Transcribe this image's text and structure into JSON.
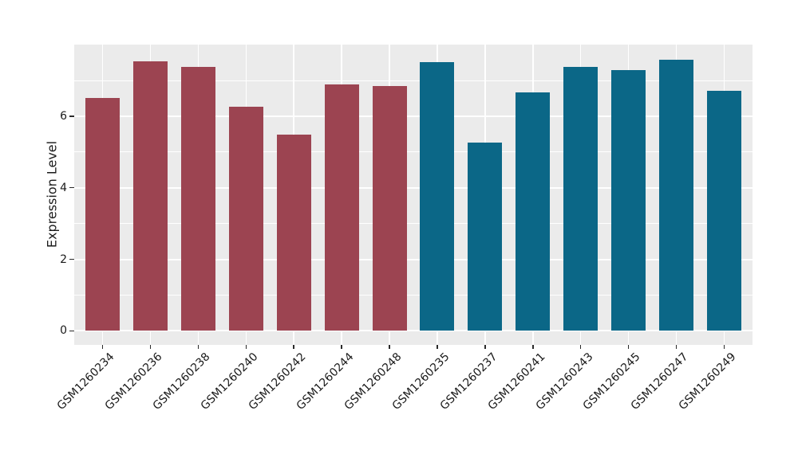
{
  "figure": {
    "background": "#ffffff",
    "panel_background": "#ebebeb",
    "gridline_color": "#ffffff",
    "tick_color": "#2b2b2b",
    "text_color": "#1a1a1a"
  },
  "chart_data": {
    "type": "bar",
    "title": "",
    "xlabel": "",
    "ylabel": "Expression Level",
    "ylim": [
      0,
      8
    ],
    "yticks": [
      0,
      2,
      4,
      6
    ],
    "minor_gridlines": [
      1,
      3,
      5,
      7
    ],
    "grid": "on",
    "legend": "none",
    "x_tick_label_rotation_deg": -45,
    "categories": [
      "GSM1260234",
      "GSM1260236",
      "GSM1260238",
      "GSM1260240",
      "GSM1260242",
      "GSM1260244",
      "GSM1260248",
      "GSM1260235",
      "GSM1260237",
      "GSM1260241",
      "GSM1260243",
      "GSM1260245",
      "GSM1260247",
      "GSM1260249"
    ],
    "values": [
      6.5,
      7.53,
      7.38,
      6.26,
      5.49,
      6.9,
      6.85,
      7.52,
      5.27,
      6.67,
      7.37,
      7.3,
      7.58,
      6.71
    ],
    "bar_groups": [
      0,
      0,
      0,
      0,
      0,
      0,
      0,
      1,
      1,
      1,
      1,
      1,
      1,
      1
    ],
    "group_colors": [
      "#9c4451",
      "#0b6787"
    ]
  }
}
